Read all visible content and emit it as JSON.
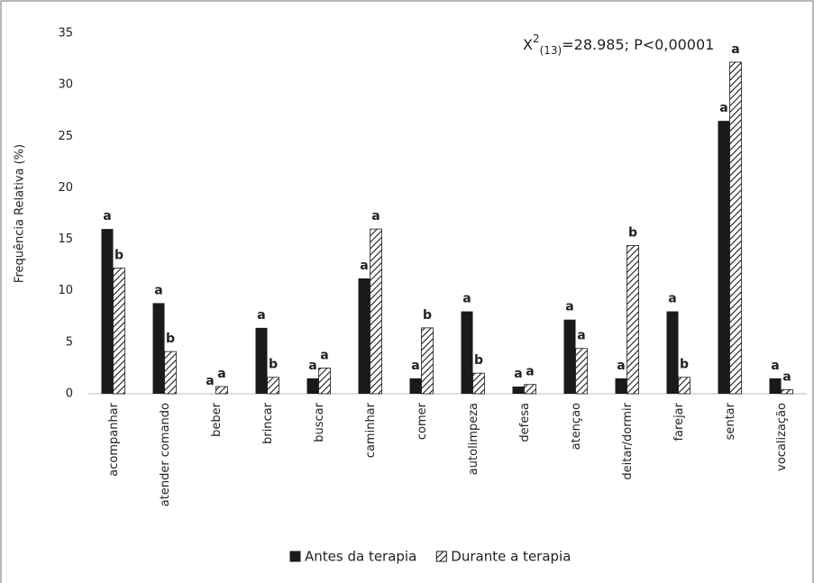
{
  "chart_data": {
    "type": "bar",
    "y_label": "Frequência Relativa (%)",
    "annotation": {
      "base": "X",
      "sup": "2",
      "sub": "(13)",
      "rest": "=28.985; P<0,00001"
    },
    "categories": [
      "acompanhar",
      "atender comando",
      "beber",
      "brincar",
      "buscar",
      "caminhar",
      "comer",
      "autolimpeza",
      "defesa",
      "atençao",
      "deitar/dormir",
      "farejar",
      "sentar",
      "vocalização"
    ],
    "series": [
      {
        "name": "Antes da terapia",
        "color": "#1a1a1a",
        "style": "solid",
        "values": [
          16.0,
          8.8,
          0,
          6.4,
          1.5,
          11.2,
          1.5,
          8.0,
          0.7,
          7.2,
          1.5,
          8.0,
          26.5,
          1.5
        ],
        "letters": [
          "a",
          "a",
          "a",
          "a",
          "a",
          "a",
          "a",
          "a",
          "a",
          "a",
          "a",
          "a",
          "a",
          "a"
        ]
      },
      {
        "name": "Durante a terapia",
        "color": "#1a1a1a",
        "style": "hatch",
        "values": [
          12.2,
          4.1,
          0.7,
          1.6,
          2.5,
          16.0,
          6.4,
          2.0,
          0.9,
          4.4,
          14.4,
          1.6,
          32.2,
          0.4
        ],
        "letters": [
          "b",
          "b",
          "a",
          "b",
          "a",
          "a",
          "b",
          "b",
          "a",
          "a",
          "b",
          "b",
          "a",
          "a"
        ]
      }
    ],
    "ylim": [
      0,
      35
    ],
    "yticks": [
      0,
      5,
      10,
      15,
      20,
      25,
      30,
      35
    ],
    "grid": false,
    "legend": "bottom"
  }
}
